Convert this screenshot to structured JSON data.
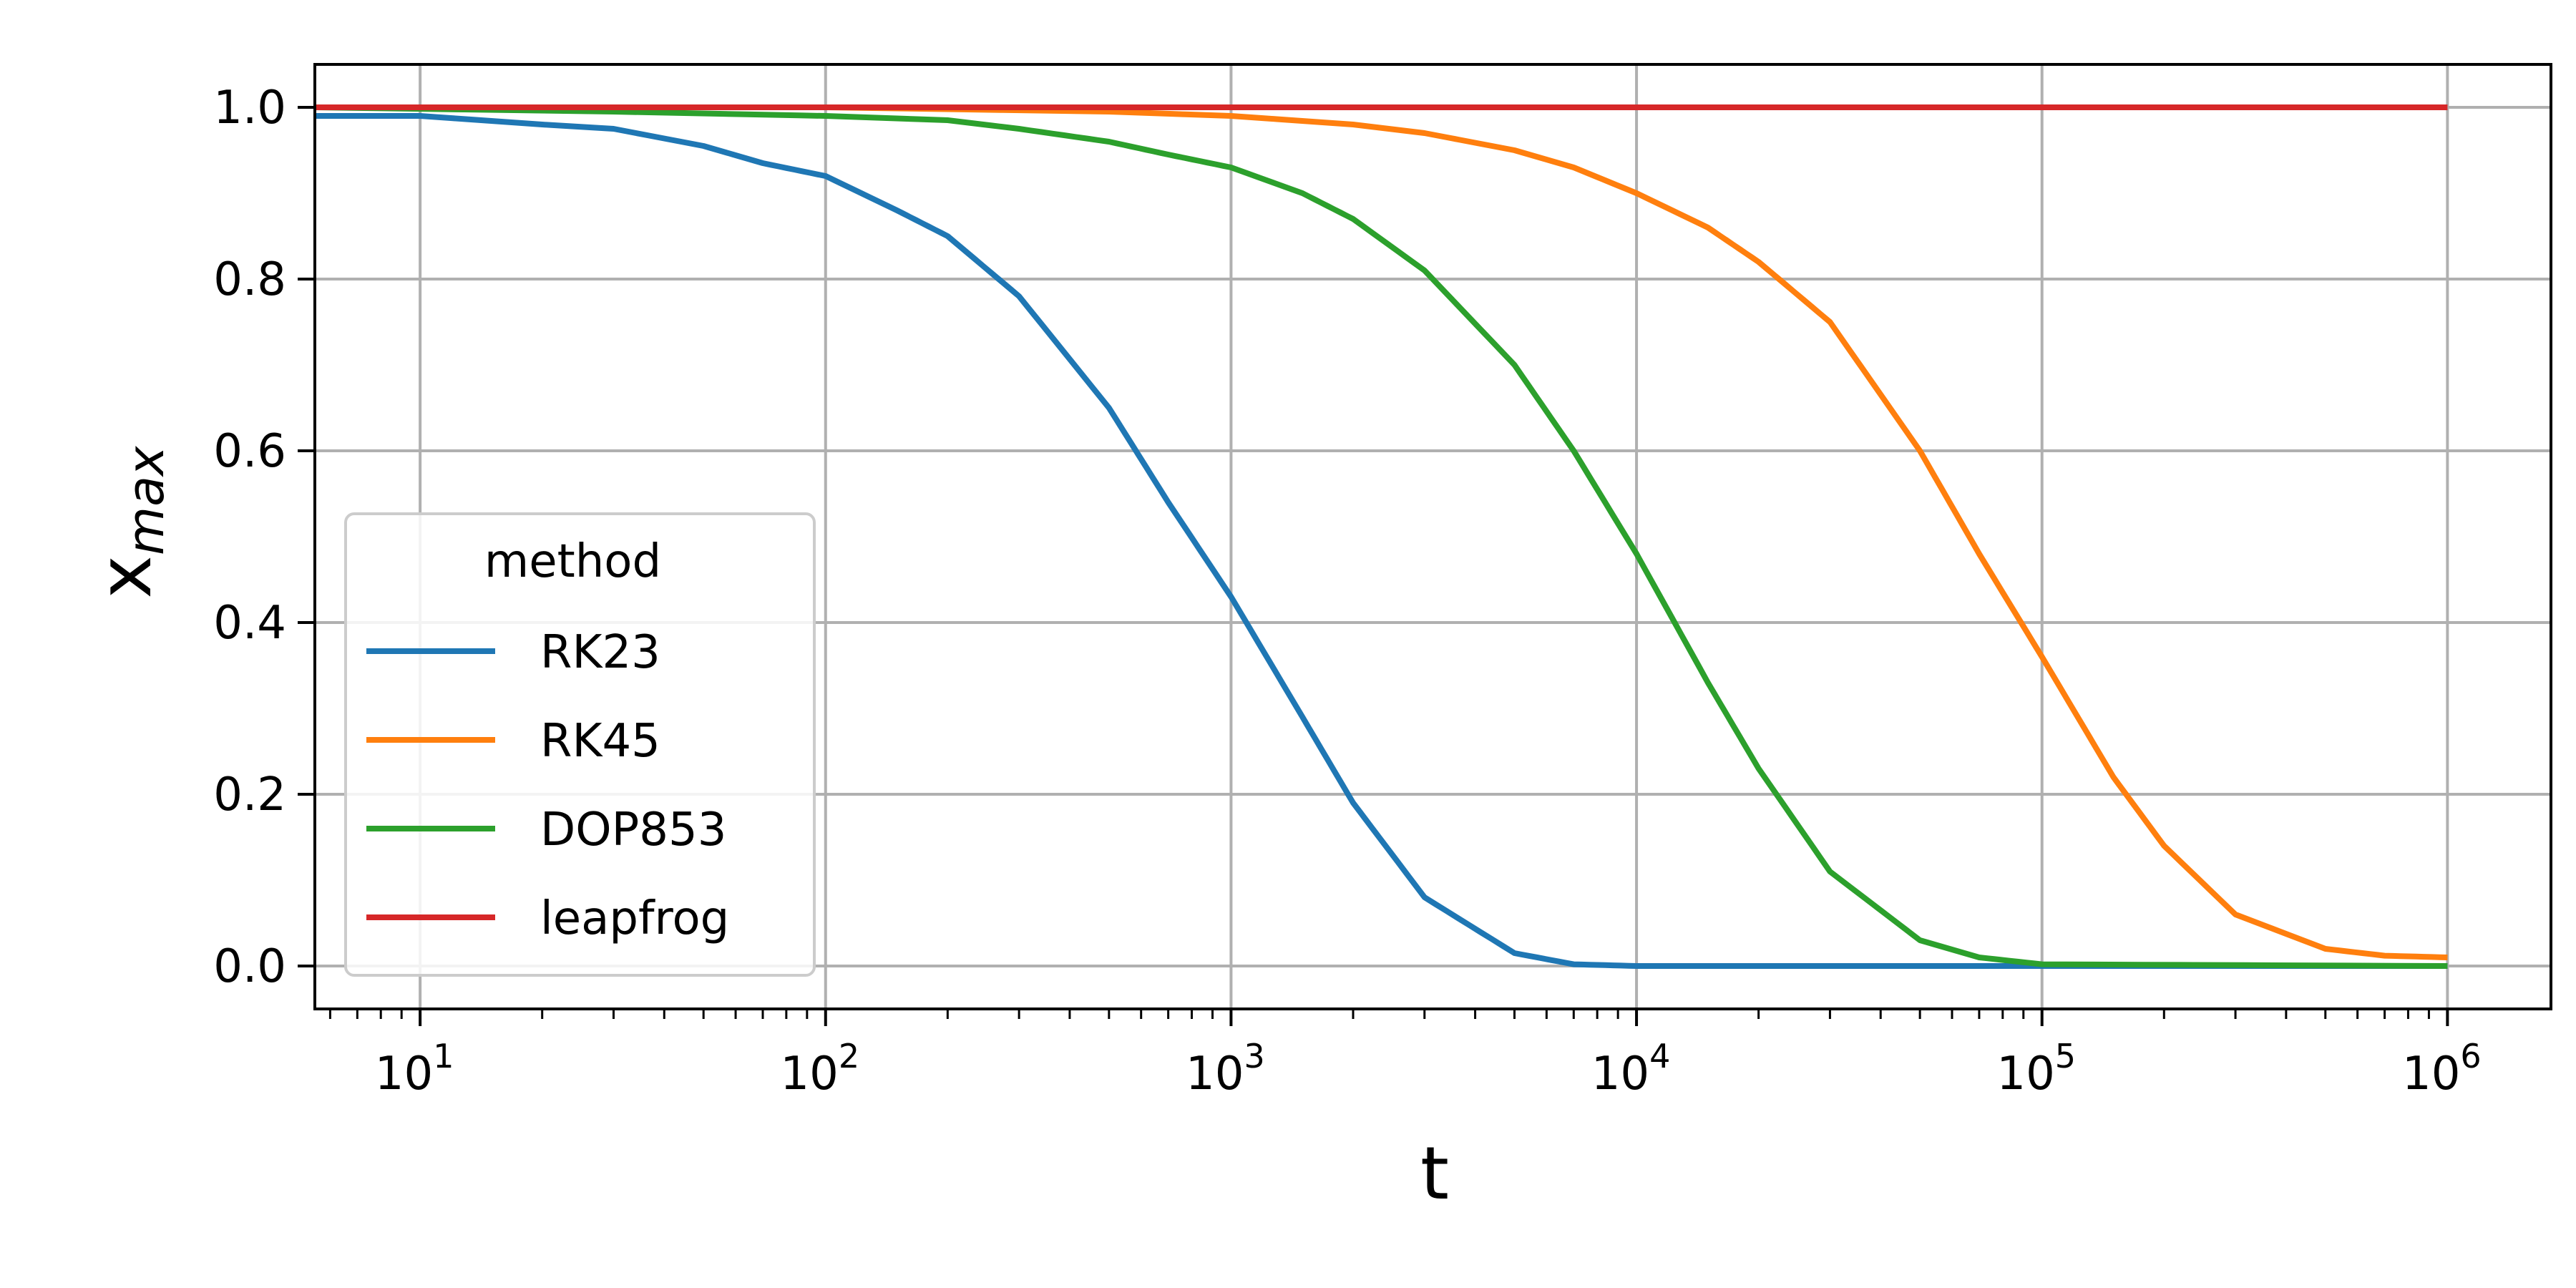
{
  "chart_data": {
    "type": "line",
    "title": "",
    "xlabel": "t",
    "ylabel": "x",
    "ylabel_subscript": "max",
    "xscale": "log",
    "xlim": [
      5.5,
      1800000
    ],
    "ylim": [
      -0.05,
      1.05
    ],
    "grid": true,
    "legend": {
      "title": "method",
      "location": "lower left"
    },
    "x_ticks": [
      {
        "value": 10,
        "base": "10",
        "exp": "1"
      },
      {
        "value": 100,
        "base": "10",
        "exp": "2"
      },
      {
        "value": 1000,
        "base": "10",
        "exp": "3"
      },
      {
        "value": 10000,
        "base": "10",
        "exp": "4"
      },
      {
        "value": 100000,
        "base": "10",
        "exp": "5"
      },
      {
        "value": 1000000,
        "base": "10",
        "exp": "6"
      }
    ],
    "y_ticks": [
      {
        "value": 0.0,
        "label": "0.0"
      },
      {
        "value": 0.2,
        "label": "0.2"
      },
      {
        "value": 0.4,
        "label": "0.4"
      },
      {
        "value": 0.6,
        "label": "0.6"
      },
      {
        "value": 0.8,
        "label": "0.8"
      },
      {
        "value": 1.0,
        "label": "1.0"
      }
    ],
    "series": [
      {
        "name": "RK23",
        "color": "#1f77b4",
        "x": [
          5.5,
          10,
          20,
          30,
          50,
          70,
          100,
          150,
          200,
          300,
          500,
          700,
          1000,
          1500,
          2000,
          3000,
          5000,
          7000,
          10000,
          100000,
          1000000
        ],
        "y": [
          0.99,
          0.99,
          0.98,
          0.975,
          0.955,
          0.935,
          0.92,
          0.88,
          0.85,
          0.78,
          0.65,
          0.54,
          0.43,
          0.29,
          0.19,
          0.08,
          0.015,
          0.002,
          0.0,
          0.0,
          0.0
        ]
      },
      {
        "name": "RK45",
        "color": "#ff7f0e",
        "x": [
          5.5,
          100,
          500,
          1000,
          2000,
          3000,
          5000,
          7000,
          10000,
          15000,
          20000,
          30000,
          50000,
          70000,
          100000,
          150000,
          200000,
          300000,
          500000,
          700000,
          1000000
        ],
        "y": [
          1.0,
          1.0,
          0.995,
          0.99,
          0.98,
          0.97,
          0.95,
          0.93,
          0.9,
          0.86,
          0.82,
          0.75,
          0.6,
          0.48,
          0.36,
          0.22,
          0.14,
          0.06,
          0.02,
          0.012,
          0.01
        ]
      },
      {
        "name": "DOP853",
        "color": "#2ca02c",
        "x": [
          5.5,
          30,
          100,
          200,
          300,
          500,
          700,
          1000,
          1500,
          2000,
          3000,
          5000,
          7000,
          10000,
          15000,
          20000,
          30000,
          50000,
          70000,
          100000,
          1000000
        ],
        "y": [
          1.0,
          0.995,
          0.99,
          0.985,
          0.975,
          0.96,
          0.945,
          0.93,
          0.9,
          0.87,
          0.81,
          0.7,
          0.6,
          0.48,
          0.33,
          0.23,
          0.11,
          0.03,
          0.01,
          0.002,
          0.0
        ]
      },
      {
        "name": "leapfrog",
        "color": "#d62728",
        "x": [
          5.5,
          1000000
        ],
        "y": [
          1.0,
          1.0
        ]
      }
    ]
  }
}
